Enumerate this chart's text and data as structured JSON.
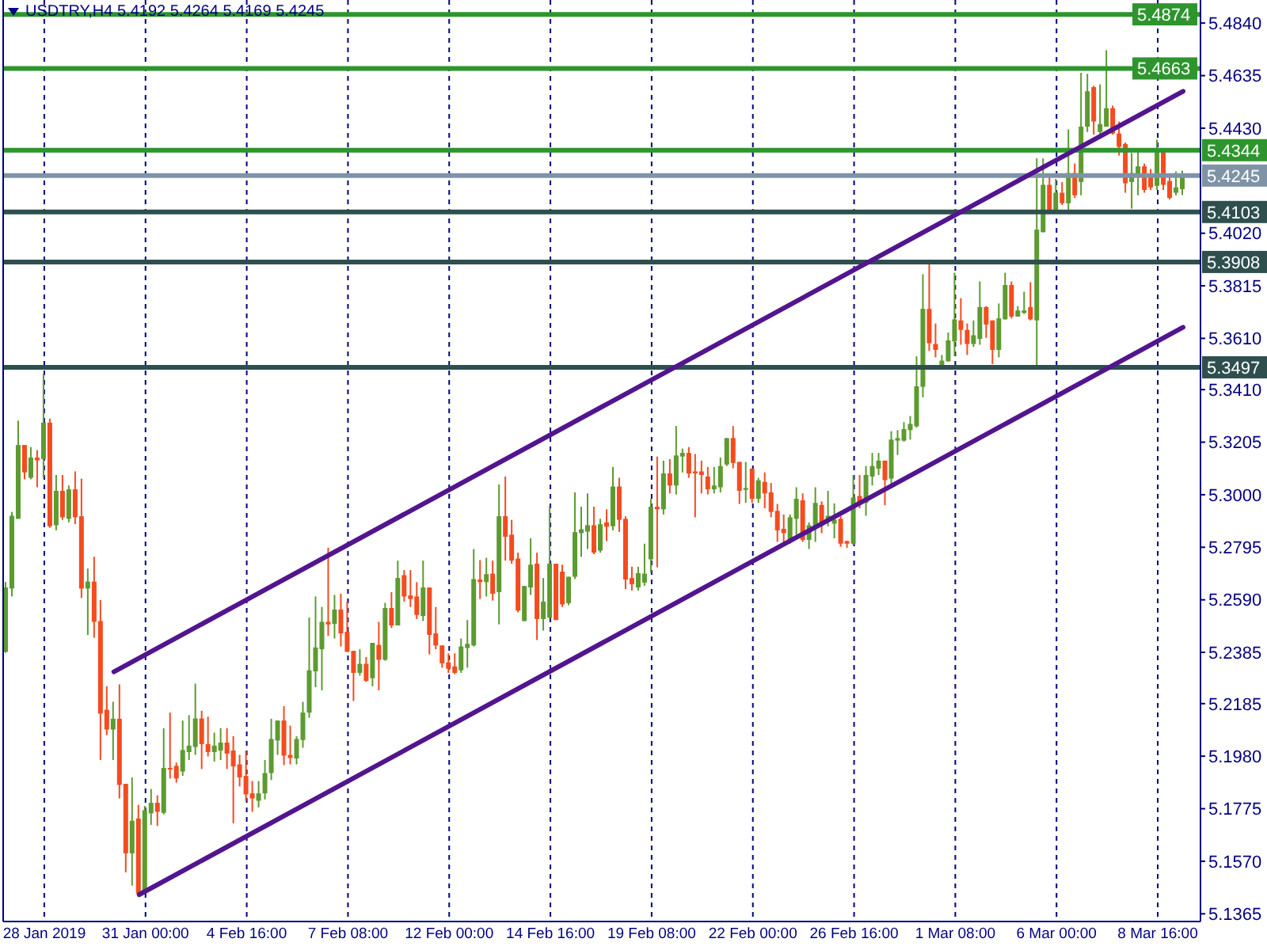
{
  "chart_data": {
    "type": "candlestick",
    "title": "USDTRY,H4 5.4192 5.4264 5.4169 5.4245",
    "categories": [
      null,
      null,
      null,
      null,
      null,
      null,
      "28 Jan 2019",
      null,
      null,
      null,
      null,
      null,
      null,
      null,
      null,
      null,
      null,
      null,
      null,
      null,
      null,
      null,
      "31 Jan 00:00",
      null,
      null,
      null,
      null,
      null,
      null,
      null,
      null,
      null,
      null,
      null,
      null,
      null,
      null,
      null,
      "4 Feb 16:00",
      null,
      null,
      null,
      null,
      null,
      null,
      null,
      null,
      null,
      null,
      null,
      null,
      null,
      null,
      null,
      "7 Feb 08:00",
      null,
      null,
      null,
      null,
      null,
      null,
      null,
      null,
      null,
      null,
      null,
      null,
      null,
      null,
      null,
      "12 Feb 00:00",
      null,
      null,
      null,
      null,
      null,
      null,
      null,
      null,
      null,
      null,
      null,
      null,
      null,
      null,
      null,
      "14 Feb 16:00",
      null,
      null,
      null,
      null,
      null,
      null,
      null,
      null,
      null,
      null,
      null,
      null,
      null,
      null,
      null,
      "19 Feb 08:00",
      null,
      null,
      null,
      null,
      null,
      null,
      null,
      null,
      null,
      null,
      null,
      null,
      null,
      null,
      null,
      "22 Feb 00:00",
      null,
      null,
      null,
      null,
      null,
      null,
      null,
      null,
      null,
      null,
      null,
      null,
      null,
      null,
      null,
      "26 Feb 16:00",
      null,
      null,
      null,
      null,
      null,
      null,
      null,
      null,
      null,
      null,
      null,
      null,
      null,
      null,
      null,
      "1 Mar 08:00",
      null,
      null,
      null,
      null,
      null,
      null,
      null,
      null,
      null,
      null,
      null,
      null,
      null,
      null,
      null,
      "6 Mar 00:00",
      null,
      null,
      null,
      null,
      null,
      null,
      null,
      null,
      null,
      null,
      null,
      null,
      null,
      null,
      null,
      "8 Mar 16:00",
      null,
      null,
      null,
      null
    ],
    "ohlc": [
      [
        5.2387,
        5.2659,
        5.2383,
        5.2638
      ],
      [
        5.2634,
        5.2933,
        5.2603,
        5.2918
      ],
      [
        5.2906,
        5.3289,
        5.2906,
        5.3194
      ],
      [
        5.3194,
        5.3194,
        5.306,
        5.3087
      ],
      [
        5.3066,
        5.3186,
        5.306,
        5.3145
      ],
      [
        5.3145,
        5.3174,
        5.3029,
        5.3134
      ],
      [
        5.3139,
        5.3472,
        5.3066,
        5.3281
      ],
      [
        5.3281,
        5.3297,
        5.2871,
        5.2877
      ],
      [
        5.2881,
        5.3077,
        5.2861,
        5.3015
      ],
      [
        5.3015,
        5.3077,
        5.2902,
        5.2912
      ],
      [
        5.2906,
        5.3036,
        5.2892,
        5.3021
      ],
      [
        5.3021,
        5.3091,
        5.2885,
        5.2912
      ],
      [
        5.2916,
        5.3063,
        5.2597,
        5.2634
      ],
      [
        5.2634,
        5.2712,
        5.2453,
        5.2661
      ],
      [
        5.2661,
        5.2758,
        5.2442,
        5.2504
      ],
      [
        5.2507,
        5.2589,
        5.1965,
        5.2146
      ],
      [
        5.2161,
        5.2253,
        5.2062,
        5.2084
      ],
      [
        5.2084,
        5.2192,
        5.1965,
        5.2126
      ],
      [
        5.2126,
        5.226,
        5.1815,
        5.1868
      ],
      [
        5.1872,
        5.1872,
        5.1527,
        5.1601
      ],
      [
        5.1601,
        5.1897,
        5.1475,
        5.1728
      ],
      [
        5.1737,
        5.179,
        5.144,
        5.1444
      ],
      [
        5.1451,
        5.1786,
        5.1444,
        5.1769
      ],
      [
        5.1757,
        5.1852,
        5.1712,
        5.1798
      ],
      [
        5.1798,
        5.1827,
        5.1708,
        5.1763
      ],
      [
        5.1759,
        5.2089,
        5.1753,
        5.1934
      ],
      [
        5.1934,
        5.215,
        5.1893,
        5.1928
      ],
      [
        5.1942,
        5.1955,
        5.1877,
        5.1893
      ],
      [
        5.192,
        5.2119,
        5.1903,
        5.2004
      ],
      [
        5.1996,
        5.214,
        5.1965,
        5.2021
      ],
      [
        5.2016,
        5.2263,
        5.1985,
        5.2127
      ],
      [
        5.2127,
        5.2157,
        5.193,
        5.2027
      ],
      [
        5.2027,
        5.2134,
        5.1979,
        5.1996
      ],
      [
        5.1996,
        5.2072,
        5.1959,
        5.2021
      ],
      [
        5.2002,
        5.2089,
        5.1965,
        5.2033
      ],
      [
        5.2033,
        5.2089,
        5.193,
        5.199
      ],
      [
        5.2002,
        5.2058,
        5.1718,
        5.194
      ],
      [
        5.1948,
        5.1985,
        5.1862,
        5.1897
      ],
      [
        5.1903,
        5.2002,
        5.1806,
        5.1831
      ],
      [
        5.1835,
        5.1883,
        5.1763,
        5.1815
      ],
      [
        5.1806,
        5.1883,
        5.178,
        5.1835
      ],
      [
        5.1835,
        5.1965,
        5.1811,
        5.1914
      ],
      [
        5.1914,
        5.2126,
        5.1887,
        5.2047
      ],
      [
        5.2041,
        5.2119,
        5.1985,
        5.2119
      ],
      [
        5.2119,
        5.2175,
        5.1945,
        5.1982
      ],
      [
        5.1985,
        5.2099,
        5.1948,
        5.1973
      ],
      [
        5.1971,
        5.2058,
        5.1948,
        5.2047
      ],
      [
        5.2043,
        5.2192,
        5.2013,
        5.215
      ],
      [
        5.215,
        5.2521,
        5.213,
        5.2315
      ],
      [
        5.2311,
        5.2603,
        5.2249,
        5.2404
      ],
      [
        5.2397,
        5.2562,
        5.2237,
        5.2504
      ],
      [
        5.2504,
        5.2793,
        5.2449,
        5.2494
      ],
      [
        5.2496,
        5.2609,
        5.2439,
        5.2552
      ],
      [
        5.2552,
        5.2614,
        5.2408,
        5.2459
      ],
      [
        5.2465,
        5.2583,
        5.2387,
        5.2387
      ],
      [
        5.2391,
        5.2391,
        5.2195,
        5.2305
      ],
      [
        5.2305,
        5.2397,
        5.2294,
        5.234
      ],
      [
        5.234,
        5.2367,
        5.227,
        5.2274
      ],
      [
        5.2284,
        5.2422,
        5.2253,
        5.2422
      ],
      [
        5.2414,
        5.2504,
        5.2237,
        5.2356
      ],
      [
        5.2356,
        5.2578,
        5.2352,
        5.2558
      ],
      [
        5.2558,
        5.262,
        5.248,
        5.249
      ],
      [
        5.249,
        5.2743,
        5.249,
        5.2675
      ],
      [
        5.2686,
        5.2706,
        5.2583,
        5.2603
      ],
      [
        5.2607,
        5.2706,
        5.2562,
        5.2593
      ],
      [
        5.2603,
        5.2659,
        5.2515,
        5.2531
      ],
      [
        5.2527,
        5.2743,
        5.2507,
        5.2638
      ],
      [
        5.2638,
        5.2638,
        5.2377,
        5.2453
      ],
      [
        5.2459,
        5.2562,
        5.2397,
        5.2412
      ],
      [
        5.2412,
        5.2412,
        5.2325,
        5.2342
      ],
      [
        5.2346,
        5.2381,
        5.2305,
        5.2321
      ],
      [
        5.233,
        5.2381,
        5.23,
        5.2305
      ],
      [
        5.2315,
        5.2439,
        5.2305,
        5.2408
      ],
      [
        5.2402,
        5.2511,
        5.2325,
        5.2418
      ],
      [
        5.2412,
        5.2788,
        5.2408,
        5.2671
      ],
      [
        5.2669,
        5.2745,
        5.2593,
        5.2659
      ],
      [
        5.2659,
        5.2754,
        5.2603,
        5.269
      ],
      [
        5.2692,
        5.2743,
        5.2587,
        5.2614
      ],
      [
        5.262,
        5.304,
        5.2494,
        5.2916
      ],
      [
        5.2916,
        5.3071,
        5.2743,
        5.2836
      ],
      [
        5.2844,
        5.2902,
        5.2731,
        5.2743
      ],
      [
        5.2751,
        5.2774,
        5.2541,
        5.2548
      ],
      [
        5.2507,
        5.2644,
        5.2507,
        5.2644
      ],
      [
        5.2638,
        5.283,
        5.2609,
        5.2727
      ],
      [
        5.2731,
        5.2774,
        5.2433,
        5.2515
      ],
      [
        5.2515,
        5.2675,
        5.247,
        5.2583
      ],
      [
        5.2521,
        5.2958,
        5.2511,
        5.2731
      ],
      [
        5.2731,
        5.2731,
        5.2511,
        5.2511
      ],
      [
        5.27,
        5.2727,
        5.2562,
        5.2572
      ],
      [
        5.2577,
        5.268,
        5.2569,
        5.268
      ],
      [
        5.268,
        5.3009,
        5.2671,
        5.2854
      ],
      [
        5.285,
        5.2953,
        5.2758,
        5.2865
      ],
      [
        5.2856,
        5.3005,
        5.2788,
        5.2881
      ],
      [
        5.2881,
        5.2953,
        5.2768,
        5.2774
      ],
      [
        5.2782,
        5.2906,
        5.2774,
        5.2885
      ],
      [
        5.2892,
        5.2943,
        5.2819,
        5.2875
      ],
      [
        5.2877,
        5.3108,
        5.2861,
        5.3032
      ],
      [
        5.3032,
        5.3066,
        5.2855,
        5.2902
      ],
      [
        5.2906,
        5.2916,
        5.2632,
        5.2669
      ],
      [
        5.2675,
        5.2719,
        5.2626,
        5.2651
      ],
      [
        5.2638,
        5.2719,
        5.2626,
        5.2694
      ],
      [
        5.2657,
        5.2809,
        5.2645,
        5.2692
      ],
      [
        5.2748,
        5.2984,
        5.2696,
        5.2953
      ],
      [
        5.2953,
        5.3149,
        5.2717,
        5.2943
      ],
      [
        5.2943,
        5.3133,
        5.2923,
        5.3083
      ],
      [
        5.3083,
        5.3139,
        5.3005,
        5.3036
      ],
      [
        5.3036,
        5.3268,
        5.3001,
        5.3153
      ],
      [
        5.3149,
        5.318,
        5.3087,
        5.3163
      ],
      [
        5.3163,
        5.3186,
        5.3066,
        5.3083
      ],
      [
        5.3091,
        5.3159,
        5.2912,
        5.3083
      ],
      [
        5.3091,
        5.3133,
        5.3005,
        5.3077
      ],
      [
        5.3071,
        5.3108,
        5.3001,
        5.3021
      ],
      [
        5.3021,
        5.3108,
        5.3005,
        5.3036
      ],
      [
        5.3029,
        5.3145,
        5.3009,
        5.3112
      ],
      [
        5.3118,
        5.3221,
        5.3112,
        5.3221
      ],
      [
        5.3221,
        5.3268,
        5.3103,
        5.3124
      ],
      [
        5.3128,
        5.3128,
        5.2964,
        5.3015
      ],
      [
        5.3019,
        5.3128,
        5.2968,
        5.3026
      ],
      [
        5.3102,
        5.3102,
        5.2968,
        5.2984
      ],
      [
        5.2984,
        5.3066,
        5.2968,
        5.3056
      ],
      [
        5.305,
        5.3087,
        5.2947,
        5.3005
      ],
      [
        5.3009,
        5.3046,
        5.2912,
        5.2933
      ],
      [
        5.2937,
        5.2964,
        5.2816,
        5.2861
      ],
      [
        5.2867,
        5.2923,
        5.2803,
        5.285
      ],
      [
        5.2816,
        5.2923,
        5.2809,
        5.2912
      ],
      [
        5.2906,
        5.3029,
        5.2844,
        5.2984
      ],
      [
        5.2978,
        5.3005,
        5.2816,
        5.2824
      ],
      [
        5.2824,
        5.2892,
        5.2788,
        5.2881
      ],
      [
        5.2877,
        5.3029,
        5.2816,
        5.2968
      ],
      [
        5.296,
        5.2974,
        5.285,
        5.2881
      ],
      [
        5.2898,
        5.3015,
        5.2877,
        5.2918
      ],
      [
        5.2887,
        5.2966,
        5.283,
        5.2903
      ],
      [
        5.2906,
        5.2916,
        5.2797,
        5.2809
      ],
      [
        5.2819,
        5.2821,
        5.2793,
        5.2809
      ],
      [
        5.2809,
        5.3077,
        5.2803,
        5.2989
      ],
      [
        5.2995,
        5.3077,
        5.2947,
        5.2968
      ],
      [
        5.2968,
        5.3112,
        5.2918,
        5.3077
      ],
      [
        5.3071,
        5.3163,
        5.3036,
        5.3112
      ],
      [
        5.3102,
        5.3163,
        5.3077,
        5.3133
      ],
      [
        5.3133,
        5.3133,
        5.2959,
        5.3057
      ],
      [
        5.3063,
        5.3248,
        5.3026,
        5.3215
      ],
      [
        5.3211,
        5.3252,
        5.3155,
        5.3221
      ],
      [
        5.3211,
        5.3283,
        5.3207,
        5.3256
      ],
      [
        5.3252,
        5.3307,
        5.3215,
        5.3276
      ],
      [
        5.3267,
        5.354,
        5.3262,
        5.3423
      ],
      [
        5.3421,
        5.386,
        5.338,
        5.3725
      ],
      [
        5.3725,
        5.39,
        5.3561,
        5.3591
      ],
      [
        5.3588,
        5.3668,
        5.3536,
        5.3565
      ],
      [
        5.3489,
        5.3545,
        5.3489,
        5.3523
      ],
      [
        5.352,
        5.3633,
        5.352,
        5.3602
      ],
      [
        5.3598,
        5.3866,
        5.354,
        5.3684
      ],
      [
        5.368,
        5.3767,
        5.3585,
        5.3643
      ],
      [
        5.3643,
        5.3668,
        5.3545,
        5.3588
      ],
      [
        5.3588,
        5.368,
        5.3577,
        5.3622
      ],
      [
        5.3608,
        5.3832,
        5.3585,
        5.3732
      ],
      [
        5.3732,
        5.3736,
        5.3612,
        5.3664
      ],
      [
        5.368,
        5.368,
        5.3509,
        5.3565
      ],
      [
        5.3565,
        5.3746,
        5.3536,
        5.3688
      ],
      [
        5.3684,
        5.3866,
        5.3684,
        5.3818
      ],
      [
        5.3818,
        5.3832,
        5.3688,
        5.3695
      ],
      [
        5.3695,
        5.3736,
        5.3695,
        5.3719
      ],
      [
        5.3709,
        5.3792,
        5.3705,
        5.3719
      ],
      [
        5.3732,
        5.3829,
        5.368,
        5.3684
      ],
      [
        5.368,
        5.4312,
        5.3503,
        5.4034
      ],
      [
        5.4024,
        5.4312,
        5.4024,
        5.4209
      ],
      [
        5.4209,
        5.4251,
        5.4102,
        5.4107
      ],
      [
        5.4107,
        5.4232,
        5.4102,
        5.4178
      ],
      [
        5.4178,
        5.422,
        5.413,
        5.4137
      ],
      [
        5.4137,
        5.4425,
        5.4096,
        5.4255
      ],
      [
        5.4255,
        5.4292,
        5.4158,
        5.4168
      ],
      [
        5.422,
        5.4646,
        5.4168,
        5.4436
      ],
      [
        5.4436,
        5.4642,
        5.4415,
        5.4574
      ],
      [
        5.459,
        5.4595,
        5.4405,
        5.4456
      ],
      [
        5.4415,
        5.4601,
        5.4405,
        5.4446
      ],
      [
        5.4436,
        5.4734,
        5.4436,
        5.4508
      ],
      [
        5.4508,
        5.4518,
        5.4405,
        5.4409
      ],
      [
        5.4409,
        5.4456,
        5.4323,
        5.4357
      ],
      [
        5.4368,
        5.4374,
        5.4178,
        5.4215
      ],
      [
        5.422,
        5.4333,
        5.4116,
        5.4255
      ],
      [
        5.4246,
        5.4343,
        5.4168,
        5.4281
      ],
      [
        5.4281,
        5.4292,
        5.4178,
        5.4189
      ],
      [
        5.424,
        5.4271,
        5.4189,
        5.4199
      ],
      [
        5.4205,
        5.4385,
        5.4189,
        5.4343
      ],
      [
        5.4343,
        5.4345,
        5.4189,
        5.4209
      ],
      [
        5.4224,
        5.4251,
        5.4152,
        5.4158
      ],
      [
        5.4178,
        5.4261,
        5.4168,
        5.4199
      ],
      [
        5.4192,
        5.4264,
        5.4169,
        5.4245
      ]
    ],
    "colors": [
      "#5c9b30",
      "#5c9b30",
      "#5c9b30",
      "#f44b1f",
      "#5c9b30",
      "#f44b1f",
      "#5c9b30",
      "#f44b1f",
      "#5c9b30",
      "#f44b1f",
      "#5c9b30",
      "#f44b1f",
      "#f44b1f",
      "#5c9b30",
      "#f44b1f",
      "#f44b1f",
      "#f44b1f",
      "#5c9b30",
      "#f44b1f",
      "#f44b1f",
      "#5c9b30",
      "#f44b1f",
      "#5c9b30",
      "#5c9b30",
      "#f44b1f",
      "#5c9b30",
      "#f44b1f",
      "#f44b1f",
      "#5c9b30",
      "#5c9b30",
      "#5c9b30",
      "#f44b1f",
      "#f44b1f",
      "#5c9b30",
      "#5c9b30",
      "#f44b1f",
      "#f44b1f",
      "#f44b1f",
      "#f44b1f",
      "#f44b1f",
      "#5c9b30",
      "#5c9b30",
      "#5c9b30",
      "#5c9b30",
      "#f44b1f",
      "#f44b1f",
      "#5c9b30",
      "#5c9b30",
      "#5c9b30",
      "#5c9b30",
      "#5c9b30",
      "#f44b1f",
      "#5c9b30",
      "#f44b1f",
      "#f44b1f",
      "#f44b1f",
      "#5c9b30",
      "#f44b1f",
      "#5c9b30",
      "#f44b1f",
      "#5c9b30",
      "#f44b1f",
      "#5c9b30",
      "#f44b1f",
      "#f44b1f",
      "#f44b1f",
      "#5c9b30",
      "#f44b1f",
      "#f44b1f",
      "#f44b1f",
      "#f44b1f",
      "#f44b1f",
      "#5c9b30",
      "#5c9b30",
      "#5c9b30",
      "#f44b1f",
      "#5c9b30",
      "#f44b1f",
      "#5c9b30",
      "#f44b1f",
      "#f44b1f",
      "#f44b1f",
      "#5c9b30",
      "#5c9b30",
      "#f44b1f",
      "#5c9b30",
      "#5c9b30",
      "#f44b1f",
      "#f44b1f",
      "#5c9b30",
      "#5c9b30",
      "#5c9b30",
      "#5c9b30",
      "#f44b1f",
      "#5c9b30",
      "#f44b1f",
      "#5c9b30",
      "#f44b1f",
      "#f44b1f",
      "#f44b1f",
      "#5c9b30",
      "#5c9b30",
      "#5c9b30",
      "#f44b1f",
      "#5c9b30",
      "#f44b1f",
      "#5c9b30",
      "#5c9b30",
      "#f44b1f",
      "#f44b1f",
      "#f44b1f",
      "#f44b1f",
      "#5c9b30",
      "#5c9b30",
      "#5c9b30",
      "#f44b1f",
      "#f44b1f",
      "#5c9b30",
      "#f44b1f",
      "#5c9b30",
      "#f44b1f",
      "#f44b1f",
      "#f44b1f",
      "#f44b1f",
      "#5c9b30",
      "#5c9b30",
      "#f44b1f",
      "#5c9b30",
      "#5c9b30",
      "#f44b1f",
      "#5c9b30",
      "#5c9b30",
      "#f44b1f",
      "#f44b1f",
      "#5c9b30",
      "#f44b1f",
      "#5c9b30",
      "#5c9b30",
      "#5c9b30",
      "#f44b1f",
      "#5c9b30",
      "#5c9b30",
      "#5c9b30",
      "#5c9b30",
      "#5c9b30",
      "#5c9b30",
      "#f44b1f",
      "#f44b1f",
      "#5c9b30",
      "#5c9b30",
      "#5c9b30",
      "#f44b1f",
      "#f44b1f",
      "#5c9b30",
      "#5c9b30",
      "#f44b1f",
      "#f44b1f",
      "#5c9b30",
      "#5c9b30",
      "#f44b1f",
      "#5c9b30",
      "#5c9b30",
      "#f44b1f",
      "#5c9b30",
      "#5c9b30",
      "#f44b1f",
      "#5c9b30",
      "#f44b1f",
      "#5c9b30",
      "#f44b1f",
      "#5c9b30",
      "#5c9b30",
      "#f44b1f",
      "#5c9b30",
      "#5c9b30",
      "#f44b1f",
      "#f44b1f",
      "#f44b1f",
      "#5c9b30",
      "#5c9b30",
      "#f44b1f",
      "#f44b1f",
      "#5c9b30",
      "#f44b1f",
      "#f44b1f",
      "#5c9b30",
      "#5c9b30"
    ],
    "series": [
      {
        "type": "line",
        "color": "#52158f",
        "values": [
          null,
          null,
          null,
          null,
          null,
          null,
          null,
          null,
          null,
          null,
          null,
          null,
          null,
          null,
          null,
          null,
          null,
          5.2309,
          null,
          null,
          null,
          null,
          null,
          null,
          null,
          null,
          null,
          null,
          null,
          null,
          null,
          null,
          null,
          null,
          null,
          null,
          null,
          null,
          null,
          null,
          null,
          null,
          null,
          null,
          null,
          null,
          null,
          null,
          null,
          null,
          null,
          null,
          null,
          null,
          null,
          null,
          null,
          null,
          null,
          null,
          null,
          null,
          null,
          null,
          null,
          null,
          null,
          null,
          null,
          null,
          null,
          null,
          null,
          null,
          null,
          null,
          null,
          null,
          null,
          null,
          null,
          null,
          null,
          null,
          null,
          null,
          null,
          null,
          null,
          null,
          null,
          null,
          null,
          null,
          null,
          null,
          null,
          null,
          null,
          null,
          null,
          null,
          null,
          null,
          null,
          null,
          null,
          null,
          null,
          null,
          null,
          null,
          null,
          null,
          null,
          null,
          null,
          null,
          null,
          null,
          null,
          null,
          null,
          null,
          null,
          null,
          null,
          null,
          null,
          null,
          null,
          null,
          null,
          null,
          null,
          null,
          null,
          null,
          null,
          null,
          null,
          null,
          null,
          null,
          null,
          null,
          null,
          null,
          null,
          null,
          null,
          null,
          null,
          null,
          null,
          null,
          null,
          null,
          null,
          null,
          null,
          null,
          null,
          null,
          null,
          null,
          null,
          null,
          null,
          null,
          null,
          null,
          null,
          null,
          null,
          null,
          null,
          null,
          null,
          null,
          null,
          null,
          null,
          null,
          null,
          null,
          5.4574
        ]
      },
      {
        "type": "line",
        "color": "#52158f",
        "values": [
          null,
          null,
          null,
          null,
          null,
          null,
          null,
          null,
          null,
          null,
          null,
          null,
          null,
          null,
          null,
          null,
          null,
          null,
          null,
          null,
          null,
          5.144,
          null,
          null,
          null,
          null,
          null,
          null,
          null,
          null,
          null,
          null,
          null,
          null,
          null,
          null,
          null,
          null,
          null,
          null,
          null,
          null,
          null,
          null,
          null,
          null,
          null,
          null,
          null,
          null,
          null,
          null,
          null,
          null,
          null,
          null,
          null,
          null,
          null,
          null,
          null,
          null,
          null,
          null,
          null,
          null,
          null,
          null,
          null,
          null,
          null,
          null,
          null,
          null,
          null,
          null,
          null,
          null,
          null,
          null,
          null,
          null,
          null,
          null,
          null,
          null,
          null,
          null,
          null,
          null,
          null,
          null,
          null,
          null,
          null,
          null,
          null,
          null,
          null,
          null,
          null,
          null,
          null,
          null,
          null,
          null,
          null,
          null,
          null,
          null,
          null,
          null,
          null,
          null,
          null,
          null,
          null,
          null,
          null,
          null,
          null,
          null,
          null,
          null,
          null,
          null,
          null,
          null,
          null,
          null,
          null,
          null,
          null,
          null,
          null,
          null,
          null,
          null,
          null,
          null,
          null,
          null,
          null,
          null,
          null,
          null,
          null,
          null,
          null,
          null,
          null,
          null,
          null,
          null,
          null,
          null,
          null,
          null,
          null,
          null,
          null,
          null,
          null,
          null,
          null,
          null,
          null,
          null,
          null,
          null,
          null,
          null,
          null,
          null,
          null,
          null,
          null,
          null,
          null,
          null,
          null,
          null,
          null,
          null,
          null,
          null,
          5.3653
        ]
      }
    ],
    "ylim": [
      5.1335,
      5.493
    ],
    "yticks": [
      5.1365,
      {
        "value": 5.157,
        "label": "5.1570"
      },
      5.1775,
      {
        "value": 5.198,
        "label": "5.1980"
      },
      5.2185,
      5.2385,
      {
        "value": 5.259,
        "label": "5.2590"
      },
      5.2795,
      {
        "value": 5.3,
        "label": "5.3000"
      },
      5.3205,
      {
        "value": 5.341,
        "label": "5.3410"
      },
      {
        "value": 5.361,
        "label": "5.3610"
      },
      5.3815,
      {
        "value": 5.402,
        "label": "5.4020"
      },
      {
        "value": 5.443,
        "label": "5.4430"
      },
      5.4635,
      {
        "value": 5.484,
        "label": "5.4840"
      }
    ],
    "ref_lines": [
      {
        "axis": "y",
        "value": 5.4874,
        "label": "5.4874",
        "color": "#2e952e"
      },
      {
        "axis": "y",
        "value": 5.4663,
        "label": "5.4663",
        "color": "#2e952e"
      },
      {
        "axis": "y",
        "value": 5.4344,
        "label": "5.4344",
        "color": "#2e952e"
      },
      {
        "axis": "y",
        "value": 5.4245,
        "label": "5.4245",
        "color": "#7f93a6"
      },
      {
        "axis": "y",
        "value": 5.4103,
        "label": "5.4103",
        "color": "#2f4f4f"
      },
      {
        "axis": "y",
        "value": 5.3908,
        "label": "5.3908",
        "color": "#2f4f4f"
      },
      {
        "axis": "y",
        "value": 5.3497,
        "label": "5.3497",
        "color": "#2f4f4f"
      }
    ],
    "grid": "x"
  }
}
